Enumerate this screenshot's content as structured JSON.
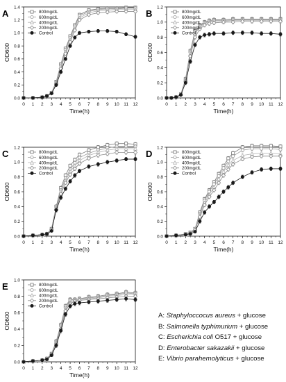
{
  "chart_data": [
    {
      "type": "line",
      "panel_label": "A",
      "xlabel": "Time(h)",
      "ylabel": "OD600",
      "xlim": [
        0,
        12
      ],
      "ylim": [
        0.0,
        1.4
      ],
      "x_ticks": [
        0,
        1,
        2,
        3,
        4,
        5,
        6,
        7,
        8,
        9,
        10,
        11,
        12
      ],
      "y_ticks": [
        0.0,
        0.2,
        0.4,
        0.6,
        0.8,
        1.0,
        1.2,
        1.4
      ],
      "y_tick_labels": [
        "0.0",
        "0.2",
        "0.4",
        "0.6",
        "0.8",
        "1.0",
        "1.2",
        "1.4"
      ],
      "legend_position": "top-left",
      "x": [
        0,
        1,
        2,
        2.5,
        3,
        3.5,
        4,
        4.5,
        5,
        5.5,
        6,
        7,
        8,
        9,
        10,
        11,
        12
      ],
      "series": [
        {
          "name": "800mg/dL",
          "marker": "open-square",
          "values": [
            0,
            0,
            0.01,
            0.03,
            0.08,
            0.25,
            0.52,
            0.76,
            0.95,
            1.12,
            1.28,
            1.35,
            1.37,
            1.38,
            1.38,
            1.39,
            1.39
          ]
        },
        {
          "name": "600mg/dL",
          "marker": "open-circle",
          "values": [
            0,
            0,
            0.01,
            0.03,
            0.08,
            0.24,
            0.5,
            0.74,
            0.92,
            1.1,
            1.26,
            1.33,
            1.36,
            1.37,
            1.37,
            1.38,
            1.38
          ]
        },
        {
          "name": "400mg/dL",
          "marker": "open-triangle",
          "values": [
            0,
            0,
            0.01,
            0.03,
            0.08,
            0.23,
            0.48,
            0.71,
            0.89,
            1.07,
            1.23,
            1.31,
            1.34,
            1.35,
            1.36,
            1.36,
            1.36
          ]
        },
        {
          "name": "200mg/dL",
          "marker": "open-diamond",
          "values": [
            0,
            0,
            0.01,
            0.03,
            0.07,
            0.22,
            0.45,
            0.68,
            0.86,
            1.04,
            1.2,
            1.28,
            1.31,
            1.32,
            1.33,
            1.33,
            1.33
          ]
        },
        {
          "name": "Control",
          "marker": "filled-circle",
          "values": [
            0,
            0,
            0.01,
            0.03,
            0.07,
            0.2,
            0.4,
            0.6,
            0.8,
            0.93,
            1.0,
            1.02,
            1.03,
            1.03,
            1.02,
            0.98,
            0.94
          ]
        }
      ]
    },
    {
      "type": "line",
      "panel_label": "B",
      "xlabel": "Time(h)",
      "ylabel": "OD600",
      "xlim": [
        0,
        12
      ],
      "ylim": [
        0.0,
        1.2
      ],
      "x_ticks": [
        0,
        1,
        2,
        3,
        4,
        5,
        6,
        7,
        8,
        9,
        10,
        11,
        12
      ],
      "y_ticks": [
        0.0,
        0.2,
        0.4,
        0.6,
        0.8,
        1.0,
        1.2
      ],
      "y_tick_labels": [
        "0.0",
        "0.2",
        "0.4",
        "0.6",
        "0.8",
        "1.0",
        "1.2"
      ],
      "legend_position": "top-left",
      "x": [
        0,
        0.5,
        1,
        1.5,
        2,
        2.5,
        3,
        3.5,
        4,
        4.5,
        5,
        6,
        7,
        8,
        9,
        10,
        11,
        12
      ],
      "series": [
        {
          "name": "800mg/dL",
          "marker": "open-square",
          "values": [
            0,
            0,
            0.01,
            0.05,
            0.25,
            0.62,
            0.88,
            0.96,
            1.0,
            1.02,
            1.03,
            1.03,
            1.04,
            1.04,
            1.04,
            1.04,
            1.04,
            1.04
          ]
        },
        {
          "name": "600mg/dL",
          "marker": "open-circle",
          "values": [
            0,
            0,
            0.01,
            0.05,
            0.24,
            0.6,
            0.86,
            0.95,
            0.99,
            1.01,
            1.02,
            1.02,
            1.03,
            1.03,
            1.03,
            1.03,
            1.03,
            1.03
          ]
        },
        {
          "name": "400mg/dL",
          "marker": "open-triangle",
          "values": [
            0,
            0,
            0.01,
            0.05,
            0.23,
            0.58,
            0.84,
            0.94,
            0.98,
            1.0,
            1.01,
            1.01,
            1.02,
            1.02,
            1.02,
            1.02,
            1.02,
            1.02
          ]
        },
        {
          "name": "200mg/dL",
          "marker": "open-diamond",
          "values": [
            0,
            0,
            0.01,
            0.04,
            0.22,
            0.55,
            0.8,
            0.91,
            0.96,
            0.98,
            0.99,
            1.0,
            1.0,
            1.01,
            1.01,
            1.01,
            1.01,
            1.01
          ]
        },
        {
          "name": "Control",
          "marker": "filled-circle",
          "values": [
            0,
            0,
            0.01,
            0.04,
            0.2,
            0.48,
            0.7,
            0.8,
            0.83,
            0.84,
            0.85,
            0.85,
            0.86,
            0.86,
            0.86,
            0.85,
            0.85,
            0.84
          ]
        }
      ]
    },
    {
      "type": "line",
      "panel_label": "C",
      "xlabel": "Time(h)",
      "ylabel": "OD600",
      "xlim": [
        0,
        12
      ],
      "ylim": [
        0.0,
        1.2
      ],
      "x_ticks": [
        0,
        1,
        2,
        3,
        4,
        5,
        6,
        7,
        8,
        9,
        10,
        11,
        12
      ],
      "y_ticks": [
        0.0,
        0.2,
        0.4,
        0.6,
        0.8,
        1.0,
        1.2
      ],
      "y_tick_labels": [
        "0.0",
        "0.2",
        "0.4",
        "0.6",
        "0.8",
        "1.0",
        "1.2"
      ],
      "legend_position": "top-left",
      "x": [
        0,
        1,
        2,
        2.5,
        3,
        3.5,
        4,
        4.5,
        5,
        5.5,
        6,
        7,
        8,
        9,
        10,
        11,
        12
      ],
      "series": [
        {
          "name": "800mg/dL",
          "marker": "open-square",
          "values": [
            0,
            0.01,
            0.02,
            0.03,
            0.1,
            0.4,
            0.65,
            0.82,
            0.95,
            1.03,
            1.1,
            1.16,
            1.2,
            1.23,
            1.25,
            1.25,
            1.24
          ]
        },
        {
          "name": "600mg/dL",
          "marker": "open-circle",
          "values": [
            0,
            0.01,
            0.02,
            0.03,
            0.1,
            0.38,
            0.62,
            0.78,
            0.9,
            0.99,
            1.06,
            1.12,
            1.16,
            1.19,
            1.21,
            1.21,
            1.21
          ]
        },
        {
          "name": "400mg/dL",
          "marker": "open-triangle",
          "values": [
            0,
            0.01,
            0.02,
            0.03,
            0.09,
            0.37,
            0.6,
            0.75,
            0.87,
            0.95,
            1.02,
            1.09,
            1.13,
            1.16,
            1.18,
            1.18,
            1.18
          ]
        },
        {
          "name": "200mg/dL",
          "marker": "open-diamond",
          "values": [
            0,
            0.01,
            0.02,
            0.03,
            0.09,
            0.36,
            0.57,
            0.72,
            0.83,
            0.91,
            0.98,
            1.05,
            1.09,
            1.11,
            1.13,
            1.13,
            1.13
          ]
        },
        {
          "name": "Control",
          "marker": "filled-circle",
          "values": [
            0,
            0.01,
            0.02,
            0.03,
            0.07,
            0.35,
            0.52,
            0.64,
            0.74,
            0.82,
            0.88,
            0.94,
            0.97,
            1.0,
            1.02,
            1.04,
            1.04
          ]
        }
      ]
    },
    {
      "type": "line",
      "panel_label": "D",
      "xlabel": "Time(h)",
      "ylabel": "OD600",
      "xlim": [
        0,
        12
      ],
      "ylim": [
        0.0,
        1.2
      ],
      "x_ticks": [
        0,
        1,
        2,
        3,
        4,
        5,
        6,
        7,
        8,
        9,
        10,
        11,
        12
      ],
      "y_ticks": [
        0.0,
        0.2,
        0.4,
        0.6,
        0.8,
        1.0,
        1.2
      ],
      "y_tick_labels": [
        "0.0",
        "0.2",
        "0.4",
        "0.6",
        "0.8",
        "1.0",
        "1.2"
      ],
      "legend_position": "top-left",
      "x": [
        0,
        1,
        2,
        2.5,
        3,
        3.5,
        4,
        4.5,
        5,
        5.5,
        6,
        6.5,
        7,
        8,
        9,
        10,
        11,
        12
      ],
      "series": [
        {
          "name": "800mg/dL",
          "marker": "open-square",
          "values": [
            0,
            0.01,
            0.03,
            0.05,
            0.1,
            0.32,
            0.5,
            0.62,
            0.73,
            0.84,
            0.95,
            1.05,
            1.12,
            1.2,
            1.22,
            1.22,
            1.22,
            1.21
          ]
        },
        {
          "name": "600mg/dL",
          "marker": "open-circle",
          "values": [
            0,
            0.01,
            0.03,
            0.05,
            0.1,
            0.3,
            0.48,
            0.6,
            0.7,
            0.81,
            0.92,
            1.01,
            1.08,
            1.16,
            1.18,
            1.18,
            1.18,
            1.17
          ]
        },
        {
          "name": "400mg/dL",
          "marker": "open-triangle",
          "values": [
            0,
            0.01,
            0.02,
            0.04,
            0.09,
            0.28,
            0.45,
            0.56,
            0.66,
            0.77,
            0.87,
            0.96,
            1.02,
            1.09,
            1.11,
            1.12,
            1.12,
            1.11
          ]
        },
        {
          "name": "200mg/dL",
          "marker": "open-diamond",
          "values": [
            0,
            0.01,
            0.02,
            0.04,
            0.08,
            0.26,
            0.42,
            0.53,
            0.62,
            0.72,
            0.82,
            0.9,
            0.97,
            1.04,
            1.07,
            1.08,
            1.08,
            1.08
          ]
        },
        {
          "name": "Control",
          "marker": "filled-circle",
          "values": [
            0,
            0.01,
            0.02,
            0.03,
            0.06,
            0.2,
            0.32,
            0.4,
            0.46,
            0.53,
            0.6,
            0.66,
            0.72,
            0.8,
            0.86,
            0.9,
            0.91,
            0.91
          ]
        }
      ]
    },
    {
      "type": "line",
      "panel_label": "E",
      "xlabel": "Time(h)",
      "ylabel": "OD600",
      "xlim": [
        0,
        12
      ],
      "ylim": [
        0.0,
        1.0
      ],
      "x_ticks": [
        0,
        1,
        2,
        3,
        4,
        5,
        6,
        7,
        8,
        9,
        10,
        11,
        12
      ],
      "y_ticks": [
        0.0,
        0.2,
        0.4,
        0.6,
        0.8,
        1.0
      ],
      "y_tick_labels": [
        "0.0",
        "0.2",
        "0.4",
        "0.6",
        "0.8",
        "1.0"
      ],
      "legend_position": "top-left",
      "x": [
        0,
        1,
        2,
        2.5,
        3,
        3.5,
        4,
        4.5,
        5,
        5.5,
        6,
        7,
        8,
        9,
        10,
        11,
        12
      ],
      "series": [
        {
          "name": "800mg/dL",
          "marker": "open-square",
          "values": [
            0,
            0.01,
            0.02,
            0.04,
            0.1,
            0.25,
            0.45,
            0.68,
            0.76,
            0.76,
            0.77,
            0.79,
            0.8,
            0.82,
            0.83,
            0.85,
            0.84
          ]
        },
        {
          "name": "600mg/dL",
          "marker": "open-circle",
          "values": [
            0,
            0.01,
            0.02,
            0.04,
            0.1,
            0.24,
            0.44,
            0.66,
            0.75,
            0.76,
            0.77,
            0.78,
            0.79,
            0.81,
            0.82,
            0.84,
            0.83
          ]
        },
        {
          "name": "400mg/dL",
          "marker": "open-triangle",
          "values": [
            0,
            0.01,
            0.02,
            0.04,
            0.09,
            0.23,
            0.42,
            0.64,
            0.73,
            0.75,
            0.76,
            0.77,
            0.78,
            0.8,
            0.81,
            0.82,
            0.82
          ]
        },
        {
          "name": "200mg/dL",
          "marker": "open-diamond",
          "values": [
            0,
            0.01,
            0.02,
            0.04,
            0.09,
            0.22,
            0.4,
            0.62,
            0.71,
            0.74,
            0.75,
            0.76,
            0.77,
            0.78,
            0.79,
            0.8,
            0.8
          ]
        },
        {
          "name": "Control",
          "marker": "filled-circle",
          "values": [
            0,
            0.01,
            0.02,
            0.03,
            0.08,
            0.2,
            0.38,
            0.58,
            0.68,
            0.71,
            0.72,
            0.73,
            0.74,
            0.75,
            0.76,
            0.77,
            0.76
          ]
        }
      ]
    }
  ],
  "caption": [
    {
      "prefix": "A: ",
      "organism": "Staphyloccocus aureus",
      "suffix": " + glucose"
    },
    {
      "prefix": "B: ",
      "organism": "Salmonella typhimurium",
      "suffix": " + glucose"
    },
    {
      "prefix": "C: ",
      "organism": "Escherichia coli",
      "suffix": " O517 + glucose"
    },
    {
      "prefix": "D: ",
      "organism": "Enterobacter sakazakii",
      "suffix": " + glucose"
    },
    {
      "prefix": "E: ",
      "organism": "Vibrio parahemolyticus",
      "suffix": " + glucose"
    }
  ],
  "colors": {
    "800mg/dL": "#7a7a7a",
    "600mg/dL": "#9a9a9a",
    "400mg/dL": "#b0b0b0",
    "200mg/dL": "#8c8c8c",
    "Control": "#1a1a1a",
    "axis": "#111111"
  }
}
